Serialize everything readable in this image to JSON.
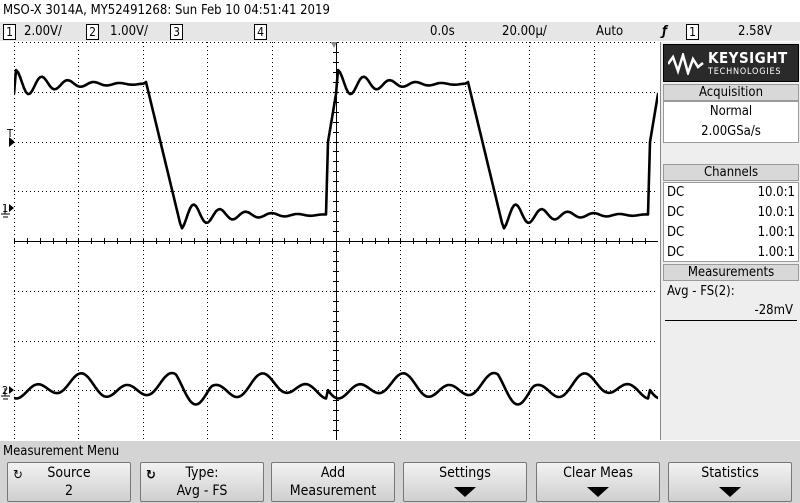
{
  "title": "MSO-X 3014A, MY52491268: Sun Feb 10 04:51:41 2019",
  "status": {
    "ch1": {
      "num": "1",
      "scale": "2.00V/"
    },
    "ch2": {
      "num": "2",
      "scale": "1.00V/"
    },
    "ch3": {
      "num": "3"
    },
    "ch4": {
      "num": "4"
    },
    "time_delay": "0.0s",
    "time_scale": "20.00µ/",
    "trigger_mode": "Auto",
    "trigger_icon": "rising-edge-trigger-icon",
    "trigger_source": "1",
    "trigger_level": "2.58V"
  },
  "markers": {
    "trigger": "T",
    "ch1": "1",
    "ch2": "2"
  },
  "logo": {
    "brand": "KEYSIGHT",
    "sub": "TECHNOLOGIES"
  },
  "acquisition": {
    "header": "Acquisition",
    "mode": "Normal",
    "rate": "2.00GSa/s"
  },
  "channels": {
    "header": "Channels",
    "rows": [
      {
        "coupling": "DC",
        "probe": "10.0:1"
      },
      {
        "coupling": "DC",
        "probe": "10.0:1"
      },
      {
        "coupling": "DC",
        "probe": "1.00:1"
      },
      {
        "coupling": "DC",
        "probe": "1.00:1"
      }
    ]
  },
  "measurements": {
    "header": "Measurements",
    "label": "Avg - FS(2):",
    "value": "-28mV"
  },
  "menu": {
    "title": "Measurement Menu",
    "softkeys": [
      {
        "line1": "Source",
        "line2": "2",
        "icon": "rotate-knob-icon"
      },
      {
        "line1": "Type:",
        "line2": "Avg - FS",
        "icon": "rotate-knob-icon"
      },
      {
        "line1": "Add",
        "line2": "Measurement"
      },
      {
        "line1": "Settings",
        "submenu": true
      },
      {
        "line1": "Clear Meas",
        "submenu": true
      },
      {
        "line1": "Statistics",
        "submenu": true
      }
    ]
  },
  "colors": {
    "trace": "#000000",
    "grid": "#000000",
    "panel": "#eeeeee",
    "menu": "#d4d4d4"
  }
}
